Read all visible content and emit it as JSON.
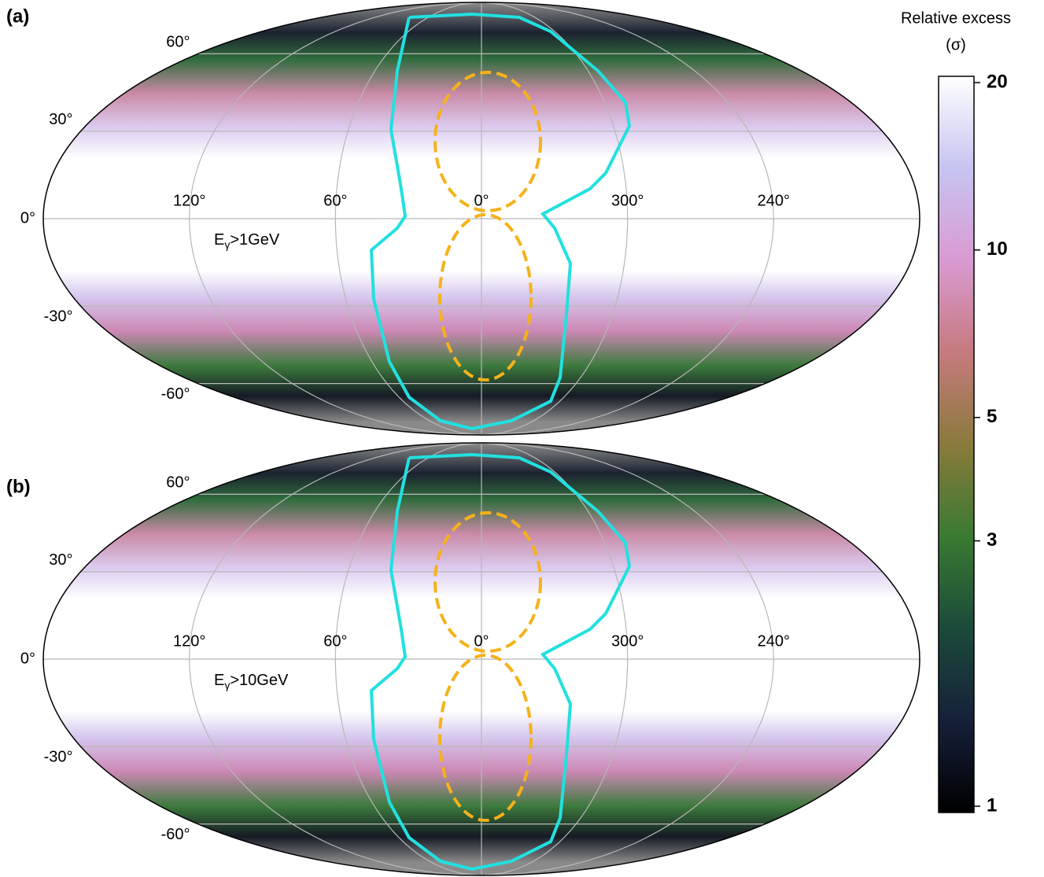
{
  "chart_data": [
    {
      "type": "mollweide",
      "panel_label": "(a)",
      "energy_label": {
        "main": "E",
        "sub": "γ",
        "rest": ">1GeV"
      },
      "grid": true,
      "lat_ticks": [
        {
          "value": 60,
          "label": "60°"
        },
        {
          "value": 30,
          "label": "30°"
        },
        {
          "value": 0,
          "label": "0°"
        },
        {
          "value": -30,
          "label": "-30°"
        },
        {
          "value": -60,
          "label": "-60°"
        }
      ],
      "lon_ticks": [
        {
          "value": 120,
          "label": "120°"
        },
        {
          "value": 60,
          "label": "60°"
        },
        {
          "value": 0,
          "label": "0°"
        },
        {
          "value": 300,
          "label": "300°"
        },
        {
          "value": 240,
          "label": "240°"
        }
      ]
    },
    {
      "type": "mollweide",
      "panel_label": "(b)",
      "energy_label": {
        "main": "E",
        "sub": "γ",
        "rest": ">10GeV"
      },
      "grid": true,
      "lat_ticks": [
        {
          "value": 60,
          "label": "60°"
        },
        {
          "value": 30,
          "label": "30°"
        },
        {
          "value": 0,
          "label": "0°"
        },
        {
          "value": -30,
          "label": "-30°"
        },
        {
          "value": -60,
          "label": "-60°"
        }
      ],
      "lon_ticks": [
        {
          "value": 120,
          "label": "120°"
        },
        {
          "value": 60,
          "label": "60°"
        },
        {
          "value": 0,
          "label": "0°"
        },
        {
          "value": 300,
          "label": "300°"
        },
        {
          "value": 240,
          "label": "240°"
        }
      ]
    },
    {
      "type": "colorbar",
      "title": "Relative excess",
      "unit": "(σ)",
      "log": true,
      "lim": [
        1,
        20
      ],
      "ticks": [
        1,
        3,
        5,
        10,
        20
      ],
      "colormap": [
        "#000000",
        "#16203a",
        "#1c4a3a",
        "#3a7a32",
        "#8a7a3c",
        "#c67a7e",
        "#d99ad2",
        "#c6c4f0",
        "#ffffff"
      ]
    }
  ]
}
